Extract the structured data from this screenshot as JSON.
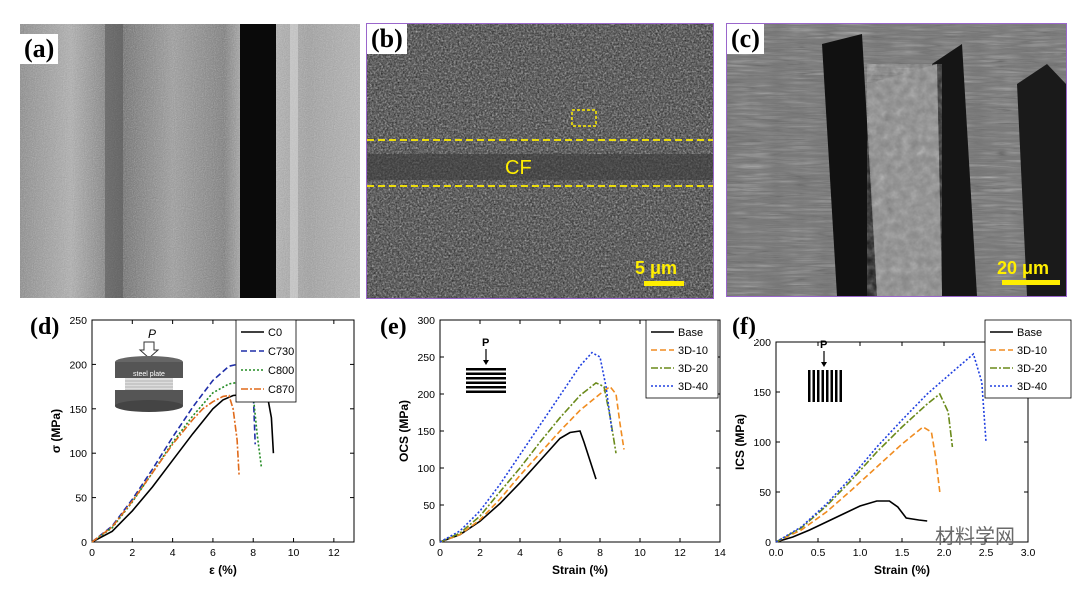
{
  "panels": {
    "a": {
      "label": "(a)"
    },
    "b": {
      "label": "(b)",
      "cf_text": "CF",
      "scale_text": "5 μm"
    },
    "c": {
      "label": "(c)",
      "scale_text": "20 μm"
    }
  },
  "watermark": "材料学网",
  "colors": {
    "black": "#000000",
    "blue": "#1f2ea8",
    "green": "#238b23",
    "orange": "#e06a1a",
    "lightorange": "#f08c20",
    "olive": "#6a8a1a",
    "dotblue": "#2040e0",
    "yellow": "#ffee00",
    "purple": "#9a66cc"
  },
  "chart_data": [
    {
      "id": "d",
      "panel_label": "(d)",
      "type": "line",
      "xlabel": "ε (%)",
      "ylabel": "σ (MPa)",
      "xlim": [
        0,
        13
      ],
      "ylim": [
        0,
        250
      ],
      "xticks": [
        0,
        2,
        4,
        6,
        8,
        10,
        12
      ],
      "yticks": [
        0,
        50,
        100,
        150,
        200,
        250
      ],
      "legend_position": "top-right",
      "inset": {
        "load_label": "P",
        "plate_label": "steel plate"
      },
      "series": [
        {
          "name": "C0",
          "color": "#000000",
          "dash": "solid",
          "x": [
            0,
            1,
            2,
            3,
            4,
            5,
            6,
            6.5,
            7,
            7.5,
            8,
            8.5,
            8.7,
            8.9,
            9.0
          ],
          "y": [
            0,
            12,
            35,
            62,
            92,
            122,
            150,
            160,
            165,
            166,
            167,
            168,
            165,
            140,
            100
          ]
        },
        {
          "name": "C730",
          "color": "#1f2ea8",
          "dash": "6,3",
          "x": [
            0,
            1,
            2,
            3,
            4,
            5,
            6,
            6.8,
            7.2,
            7.6,
            7.9,
            8.0,
            8.1
          ],
          "y": [
            0,
            18,
            48,
            82,
            118,
            152,
            182,
            198,
            200,
            208,
            214,
            170,
            110
          ]
        },
        {
          "name": "C800",
          "color": "#238b23",
          "dash": "2,2",
          "x": [
            0,
            1,
            2,
            3,
            4,
            5,
            6,
            6.8,
            7.3,
            7.8,
            8.0,
            8.2,
            8.4
          ],
          "y": [
            0,
            16,
            45,
            78,
            112,
            142,
            168,
            178,
            180,
            175,
            165,
            120,
            85
          ]
        },
        {
          "name": "C870",
          "color": "#e06a1a",
          "dash": "7,2,2,2",
          "x": [
            0,
            1,
            2,
            3,
            4,
            5,
            5.5,
            6,
            6.5,
            6.8,
            7.0,
            7.2,
            7.3
          ],
          "y": [
            0,
            17,
            46,
            78,
            110,
            138,
            150,
            158,
            164,
            165,
            150,
            115,
            75
          ]
        }
      ]
    },
    {
      "id": "e",
      "panel_label": "(e)",
      "type": "line",
      "xlabel": "Strain (%)",
      "ylabel": "OCS (MPa)",
      "xlim": [
        0,
        14
      ],
      "ylim": [
        0,
        300
      ],
      "xticks": [
        0,
        2,
        4,
        6,
        8,
        10,
        12,
        14
      ],
      "yticks": [
        0,
        50,
        100,
        150,
        200,
        250,
        300
      ],
      "legend_position": "top-right",
      "inset": {
        "load_label": "P"
      },
      "series": [
        {
          "name": "Base",
          "color": "#000000",
          "dash": "solid",
          "x": [
            0,
            1,
            2,
            3,
            4,
            5,
            5.5,
            6,
            6.5,
            7.0,
            7.2,
            7.5,
            7.8
          ],
          "y": [
            0,
            10,
            28,
            52,
            80,
            110,
            125,
            140,
            148,
            150,
            135,
            110,
            85
          ]
        },
        {
          "name": "3D-10",
          "color": "#f08c20",
          "dash": "6,3",
          "x": [
            0,
            1,
            2,
            3,
            4,
            5,
            6,
            7,
            8,
            8.5,
            8.8,
            9.0,
            9.2
          ],
          "y": [
            0,
            10,
            30,
            58,
            90,
            120,
            150,
            178,
            200,
            210,
            200,
            160,
            125
          ]
        },
        {
          "name": "3D-20",
          "color": "#6a8a1a",
          "dash": "7,2,2,2",
          "x": [
            0,
            1,
            2,
            3,
            4,
            5,
            6,
            7,
            7.8,
            8.2,
            8.5,
            8.8
          ],
          "y": [
            0,
            12,
            35,
            68,
            100,
            135,
            168,
            198,
            215,
            210,
            170,
            120
          ]
        },
        {
          "name": "3D-40",
          "color": "#2040e0",
          "dash": "2,2",
          "x": [
            0,
            1,
            2,
            3,
            4,
            5,
            6,
            7,
            7.6,
            8.0,
            8.3,
            8.6
          ],
          "y": [
            0,
            15,
            42,
            78,
            118,
            158,
            198,
            238,
            256,
            250,
            210,
            150
          ]
        }
      ]
    },
    {
      "id": "f",
      "panel_label": "(f)",
      "type": "line",
      "xlabel": "Strain (%)",
      "ylabel": "ICS (MPa)",
      "xlim": [
        0,
        3.0
      ],
      "ylim": [
        0,
        200
      ],
      "xticks": [
        0.0,
        0.5,
        1.0,
        1.5,
        2.0,
        2.5,
        3.0
      ],
      "xtick_labels": [
        "0.0",
        "0.5",
        "1.0",
        "1.5",
        "2.0",
        "2.5",
        "3.0"
      ],
      "yticks": [
        0,
        50,
        100,
        150,
        200
      ],
      "legend_position": "top-right",
      "inset": {
        "load_label": "P"
      },
      "series": [
        {
          "name": "Base",
          "color": "#000000",
          "dash": "solid",
          "x": [
            0,
            0.2,
            0.4,
            0.6,
            0.8,
            1.0,
            1.2,
            1.35,
            1.45,
            1.55,
            1.7,
            1.8
          ],
          "y": [
            0,
            5,
            12,
            20,
            28,
            36,
            41,
            41,
            35,
            24,
            22,
            21
          ]
        },
        {
          "name": "3D-10",
          "color": "#f08c20",
          "dash": "6,3",
          "x": [
            0,
            0.3,
            0.6,
            0.9,
            1.2,
            1.5,
            1.75,
            1.85,
            1.9,
            1.95
          ],
          "y": [
            0,
            12,
            30,
            52,
            75,
            98,
            115,
            110,
            85,
            50
          ]
        },
        {
          "name": "3D-20",
          "color": "#6a8a1a",
          "dash": "7,2,2,2",
          "x": [
            0,
            0.3,
            0.6,
            0.9,
            1.2,
            1.5,
            1.8,
            1.95,
            2.05,
            2.1
          ],
          "y": [
            0,
            14,
            36,
            62,
            90,
            115,
            138,
            148,
            130,
            95
          ]
        },
        {
          "name": "3D-40",
          "color": "#2040e0",
          "dash": "2,2",
          "x": [
            0,
            0.3,
            0.6,
            0.9,
            1.2,
            1.5,
            1.8,
            2.1,
            2.35,
            2.45,
            2.5
          ],
          "y": [
            0,
            15,
            38,
            65,
            95,
            122,
            148,
            170,
            188,
            160,
            100
          ]
        }
      ]
    }
  ]
}
